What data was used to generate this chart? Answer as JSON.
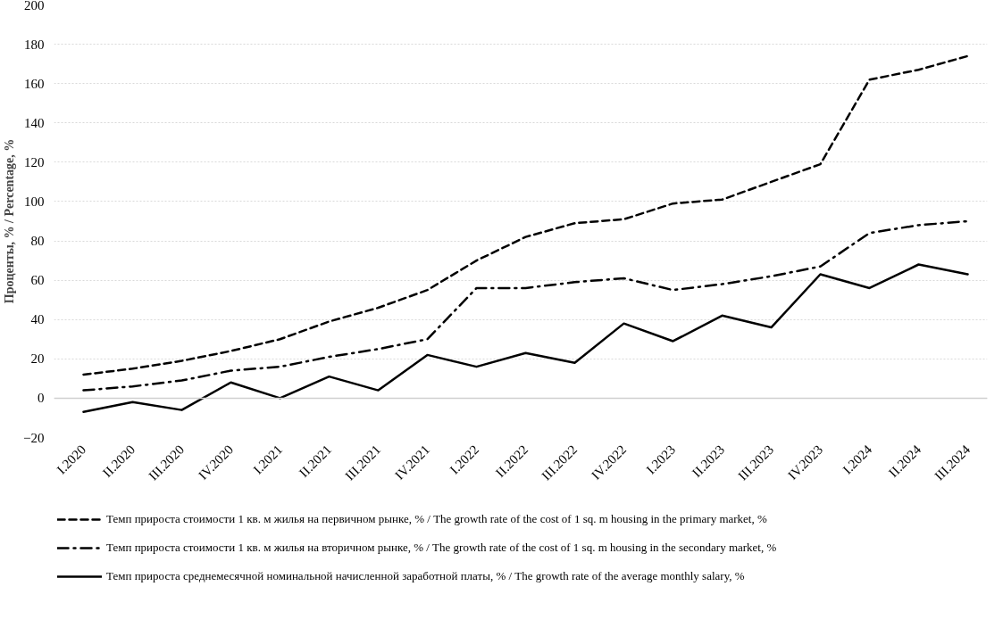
{
  "chart_data": {
    "type": "line",
    "ylabel": "Проценты, % / Percentage, %",
    "categories": [
      "I.2020",
      "II.2020",
      "III.2020",
      "IV.2020",
      "I.2021",
      "II.2021",
      "III.2021",
      "IV.2021",
      "I.2022",
      "II.2022",
      "III.2022",
      "IV.2022",
      "I.2023",
      "II.2023",
      "III.2023",
      "IV.2023",
      "I.2024",
      "II.2024",
      "III.2024"
    ],
    "series": [
      {
        "name": "Темп прироста стоимости 1 кв. м жилья на первичном рынке, % / The growth rate of the cost of 1 sq. m housing in the primary market, %",
        "color": "#000000",
        "line_style": "dashed",
        "values": [
          12,
          15,
          19,
          24,
          30,
          39,
          46,
          55,
          70,
          82,
          89,
          91,
          99,
          101,
          110,
          119,
          162,
          167,
          174
        ]
      },
      {
        "name": "Темп прироста стоимости 1 кв. м жилья на вторичном рынке, % / The growth rate of the cost of 1 sq. m housing in the secondary market, %",
        "color": "#000000",
        "line_style": "dashdot",
        "values": [
          4,
          6,
          9,
          14,
          16,
          21,
          25,
          30,
          56,
          56,
          59,
          61,
          55,
          58,
          62,
          67,
          84,
          88,
          90
        ]
      },
      {
        "name": "Темп прироста среднемесячной номинальной начисленной заработной платы, % / The growth rate of the average monthly salary, %",
        "color": "#000000",
        "line_style": "solid",
        "values": [
          -7,
          -2,
          -6,
          8,
          0,
          11,
          4,
          22,
          16,
          23,
          18,
          38,
          29,
          42,
          36,
          63,
          56,
          68,
          63
        ]
      }
    ],
    "ylim": [
      -20,
      200
    ],
    "yticks": [
      -20,
      0,
      20,
      40,
      60,
      80,
      100,
      120,
      140,
      160,
      180,
      200
    ],
    "grid": "y",
    "legend": "bottom",
    "marker": "none"
  }
}
